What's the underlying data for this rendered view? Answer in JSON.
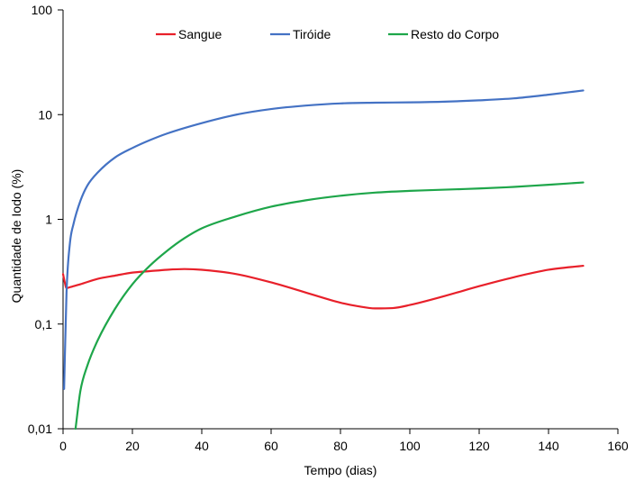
{
  "chart_data": {
    "type": "line",
    "title": "",
    "xlabel": "Tempo (dias)",
    "ylabel": "Quantidade de Iodo (%)",
    "xlim": [
      0,
      160
    ],
    "ylim": [
      0.01,
      100
    ],
    "yscale": "log",
    "x_ticks": [
      "0",
      "20",
      "40",
      "60",
      "80",
      "100",
      "120",
      "140",
      "160"
    ],
    "y_ticks": [
      "0,01",
      "0,1",
      "1",
      "10",
      "100"
    ],
    "grid": false,
    "legend_position": "top",
    "series": [
      {
        "name": "Sangue",
        "color": "#e8202a",
        "x": [
          0,
          0.5,
          1,
          2,
          5,
          10,
          15,
          20,
          25,
          30,
          35,
          40,
          50,
          60,
          70,
          80,
          85,
          90,
          95,
          100,
          110,
          120,
          130,
          140,
          150
        ],
        "y": [
          0.3,
          0.25,
          0.22,
          0.225,
          0.24,
          0.27,
          0.29,
          0.31,
          0.32,
          0.33,
          0.335,
          0.33,
          0.3,
          0.25,
          0.2,
          0.16,
          0.148,
          0.141,
          0.142,
          0.152,
          0.185,
          0.23,
          0.28,
          0.33,
          0.36
        ]
      },
      {
        "name": "Tiróide",
        "color": "#4472c4",
        "x": [
          0.3,
          1,
          2,
          3,
          5,
          7,
          10,
          15,
          20,
          25,
          30,
          40,
          50,
          60,
          70,
          80,
          90,
          100,
          110,
          120,
          130,
          140,
          150
        ],
        "y": [
          0.024,
          0.2,
          0.6,
          0.9,
          1.5,
          2.1,
          2.8,
          3.9,
          4.8,
          5.7,
          6.6,
          8.3,
          10,
          11.3,
          12.2,
          12.8,
          13,
          13.1,
          13.3,
          13.7,
          14.3,
          15.5,
          17
        ]
      },
      {
        "name": "Resto do Corpo",
        "color": "#1ea64a",
        "x": [
          3.6,
          5,
          7,
          10,
          15,
          20,
          25,
          30,
          35,
          40,
          50,
          60,
          70,
          80,
          90,
          100,
          110,
          120,
          130,
          140,
          150
        ],
        "y": [
          0.01,
          0.023,
          0.04,
          0.07,
          0.14,
          0.24,
          0.36,
          0.5,
          0.66,
          0.82,
          1.07,
          1.32,
          1.52,
          1.68,
          1.8,
          1.87,
          1.92,
          1.97,
          2.04,
          2.14,
          2.25
        ]
      }
    ]
  }
}
